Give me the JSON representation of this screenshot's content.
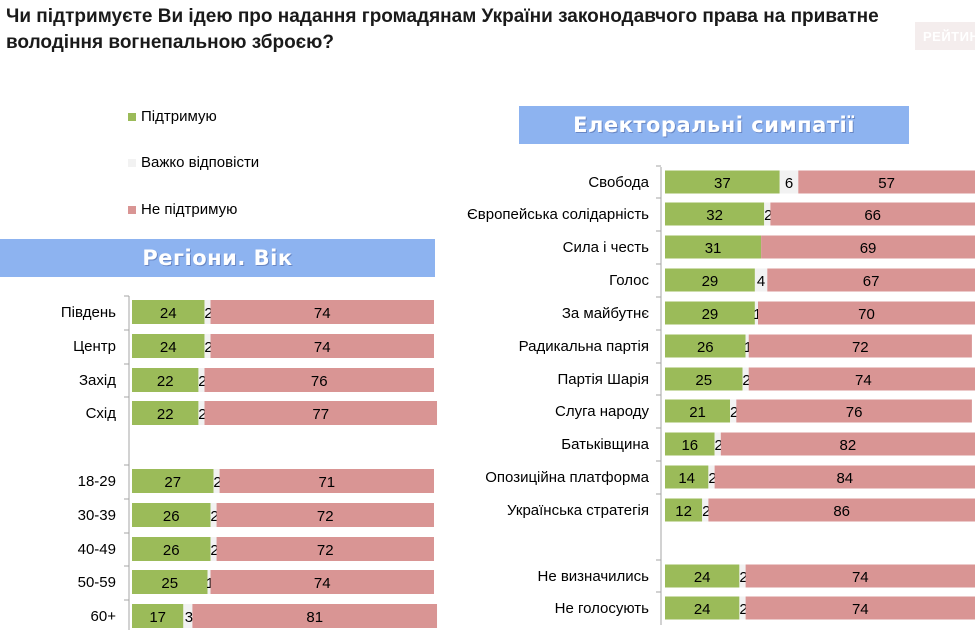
{
  "title": "Чи підтримуєте Ви ідею про надання громадянам України законодавчого права на приватне володіння вогнепальною зброєю?",
  "brand": "РЕЙТИНГ",
  "colors": {
    "support": "#9bbb59",
    "hard": "#f2f2f2",
    "oppose": "#d99594",
    "header": "#8db3f0"
  },
  "chart_data": [
    {
      "type": "bar",
      "stacked": true,
      "orientation": "horizontal",
      "title": "Регіони. Вік",
      "legend": [
        "Підтримую",
        "Важко відповісти",
        "Не підтримую"
      ],
      "legend_position": "top-left",
      "categories": [
        "Південь",
        "Центр",
        "Захід",
        "Схід",
        "18-29",
        "30-39",
        "40-49",
        "50-59",
        "60+"
      ],
      "series": [
        {
          "name": "Підтримую",
          "values": [
            24,
            24,
            22,
            22,
            27,
            26,
            26,
            25,
            17
          ]
        },
        {
          "name": "Важко відповісти",
          "values": [
            2,
            2,
            2,
            2,
            2,
            2,
            2,
            1,
            3
          ]
        },
        {
          "name": "Не підтримую",
          "values": [
            74,
            74,
            76,
            77,
            71,
            72,
            72,
            74,
            81
          ]
        }
      ],
      "xlim": [
        0,
        100
      ],
      "grid": false
    },
    {
      "type": "bar",
      "stacked": true,
      "orientation": "horizontal",
      "title": "Електоральні симпатії",
      "categories": [
        "Свобода",
        "Європейська солідарність",
        "Сила і честь",
        "Голос",
        "За майбутнє",
        "Радикальна партія",
        "Партія Шарія",
        "Слуга народу",
        "Батьківщина",
        "Опозиційна платформа",
        "Українська стратегія",
        "Не визначились",
        "Не голосують"
      ],
      "series": [
        {
          "name": "Підтримую",
          "values": [
            37,
            32,
            31,
            29,
            29,
            26,
            25,
            21,
            16,
            14,
            12,
            24,
            24
          ]
        },
        {
          "name": "Важко відповісти",
          "values": [
            6,
            2,
            0,
            4,
            1,
            1,
            2,
            2,
            2,
            2,
            2,
            2,
            2
          ]
        },
        {
          "name": "Не підтримую",
          "values": [
            57,
            66,
            69,
            67,
            70,
            72,
            74,
            76,
            82,
            84,
            86,
            74,
            74
          ]
        }
      ],
      "xlim": [
        0,
        100
      ],
      "grid": false
    }
  ]
}
